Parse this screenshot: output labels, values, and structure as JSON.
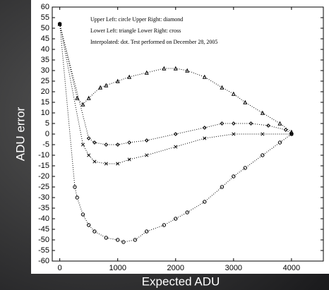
{
  "chart_data": {
    "type": "scatter",
    "annotations": [
      "Upper Left: circle Upper Right: diamond",
      "Lower Left: triangle Lower Right: cross",
      "Interpolated: dot.  Test performed on December 28, 2005"
    ],
    "x_label": "Expected ADU",
    "y_label": "ADU error",
    "xlim": [
      -130,
      4550
    ],
    "ylim": [
      -60,
      60
    ],
    "xticks": [
      0,
      1000,
      2000,
      3000,
      4000
    ],
    "yticks": [
      -60,
      -55,
      -50,
      -45,
      -40,
      -35,
      -30,
      -25,
      -20,
      -15,
      -10,
      -5,
      0,
      5,
      10,
      15,
      20,
      25,
      30,
      35,
      40,
      45,
      50,
      55,
      60
    ],
    "series": [
      {
        "marker": "triangle",
        "color": "#000000",
        "x": [
          0,
          300,
          400,
          500,
          700,
          800,
          1000,
          1200,
          1500,
          1800,
          2000,
          2200,
          2500,
          2800,
          3000,
          3200,
          3500,
          3800,
          4000
        ],
        "values": [
          52,
          17,
          14,
          17,
          22,
          23,
          25,
          27,
          29,
          31,
          31,
          30,
          27,
          22,
          19,
          15,
          10,
          5,
          1
        ]
      },
      {
        "marker": "circle",
        "color": "#000000",
        "x": [
          0,
          260,
          300,
          400,
          500,
          600,
          800,
          1000,
          1100,
          1300,
          1500,
          1800,
          2000,
          2200,
          2500,
          2800,
          3000,
          3200,
          3500,
          3800,
          4000
        ],
        "values": [
          52,
          -25,
          -30,
          -38,
          -43,
          -46,
          -49,
          -50,
          -51,
          -50,
          -46,
          -43,
          -40,
          -37,
          -32,
          -25,
          -20,
          -16,
          -10,
          -4,
          0
        ]
      },
      {
        "marker": "diamond",
        "color": "#000000",
        "x": [
          0,
          500,
          600,
          800,
          1000,
          1200,
          1500,
          2000,
          2500,
          2800,
          3000,
          3300,
          3600,
          3900,
          4000
        ],
        "values": [
          52,
          -2,
          -4,
          -5,
          -5,
          -4,
          -3,
          0,
          3,
          5,
          5,
          5,
          4,
          2,
          0
        ]
      },
      {
        "marker": "cross",
        "color": "#000000",
        "x": [
          0,
          400,
          500,
          600,
          800,
          1000,
          1200,
          1500,
          2000,
          2500,
          3000,
          3500,
          4000
        ],
        "values": [
          52,
          -5,
          -10,
          -13,
          -14,
          -14,
          -12,
          -10,
          -6,
          -2,
          0,
          0,
          0
        ]
      }
    ]
  }
}
